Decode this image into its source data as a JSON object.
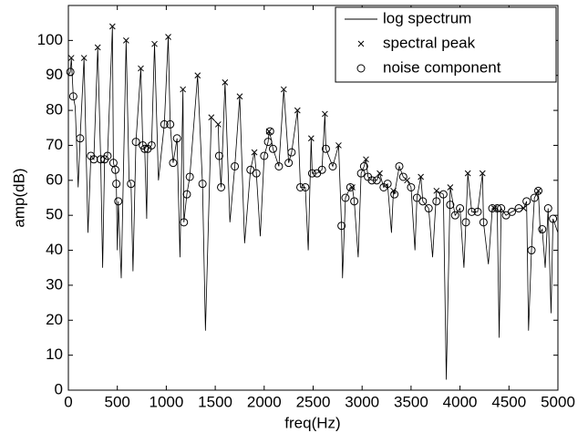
{
  "chart_data": {
    "type": "line",
    "xlabel": "freq(Hz)",
    "ylabel": "amp(dB)",
    "xlim": [
      0,
      5000
    ],
    "ylim": [
      0,
      110
    ],
    "xticks": [
      0,
      500,
      1000,
      1500,
      2000,
      2500,
      3000,
      3500,
      4000,
      4500,
      5000
    ],
    "yticks": [
      0,
      10,
      20,
      30,
      40,
      50,
      60,
      70,
      80,
      90,
      100
    ],
    "grid": false,
    "legend": "upper right",
    "series": [
      {
        "name": "log spectrum",
        "type": "line",
        "color": "#000000",
        "x": [
          0,
          20,
          30,
          50,
          70,
          100,
          120,
          160,
          200,
          230,
          260,
          300,
          330,
          350,
          370,
          400,
          450,
          460,
          480,
          490,
          500,
          510,
          540,
          590,
          620,
          640,
          660,
          690,
          740,
          760,
          780,
          800,
          810,
          850,
          880,
          920,
          980,
          1020,
          1040,
          1070,
          1110,
          1140,
          1170,
          1180,
          1210,
          1240,
          1320,
          1370,
          1400,
          1460,
          1530,
          1540,
          1560,
          1600,
          1650,
          1700,
          1750,
          1800,
          1860,
          1900,
          1920,
          1960,
          2000,
          2040,
          2050,
          2070,
          2090,
          2150,
          2200,
          2250,
          2280,
          2340,
          2370,
          2420,
          2450,
          2480,
          2490,
          2540,
          2590,
          2620,
          2630,
          2700,
          2760,
          2790,
          2800,
          2830,
          2880,
          2900,
          2920,
          2960,
          2990,
          3020,
          3040,
          3060,
          3100,
          3150,
          3180,
          3220,
          3260,
          3300,
          3320,
          3330,
          3380,
          3420,
          3460,
          3500,
          3540,
          3560,
          3600,
          3620,
          3680,
          3720,
          3760,
          3830,
          3860,
          3900,
          3950,
          4000,
          4040,
          4060,
          4080,
          4120,
          4180,
          4230,
          4240,
          4290,
          4330,
          4350,
          4380,
          4400,
          4420,
          4470,
          4530,
          4600,
          4650,
          4680,
          4700,
          4730,
          4760,
          4800,
          4820,
          4840,
          4870,
          4900,
          4930,
          4950,
          5000
        ],
        "values": [
          90,
          91,
          95,
          84,
          81,
          58,
          72,
          95,
          45,
          67,
          66,
          98,
          66,
          35,
          66,
          67,
          104,
          65,
          63,
          59,
          40,
          54,
          32,
          100,
          60,
          59,
          34,
          71,
          92,
          70,
          69,
          49,
          69,
          70,
          99,
          60,
          76,
          101,
          76,
          65,
          72,
          38,
          86,
          48,
          56,
          61,
          90,
          59,
          17,
          78,
          76,
          67,
          58,
          88,
          48,
          64,
          84,
          42,
          63,
          68,
          62,
          44,
          67,
          71,
          74,
          72,
          69,
          64,
          86,
          65,
          68,
          80,
          58,
          58,
          40,
          72,
          62,
          62,
          63,
          79,
          69,
          64,
          70,
          47,
          32,
          55,
          58,
          58,
          54,
          38,
          62,
          64,
          66,
          61,
          60,
          60,
          62,
          58,
          59,
          45,
          57,
          56,
          64,
          61,
          60,
          58,
          40,
          55,
          61,
          54,
          52,
          38,
          57,
          56,
          3,
          58,
          50,
          52,
          35,
          48,
          62,
          51,
          51,
          62,
          48,
          36,
          52,
          52,
          52,
          15,
          52,
          50,
          51,
          52,
          52,
          54,
          17,
          40,
          55,
          57,
          45,
          46,
          35,
          52,
          22,
          49,
          45
        ]
      },
      {
        "name": "spectral peak",
        "type": "scatter",
        "marker": "x",
        "color": "#000000",
        "x": [
          30,
          160,
          300,
          450,
          590,
          740,
          880,
          1020,
          1170,
          1320,
          1460,
          1530,
          1600,
          1750,
          1900,
          2050,
          2200,
          2340,
          2480,
          2620,
          2760,
          2900,
          3040,
          3180,
          3320,
          3460,
          3600,
          3760,
          3900,
          4080,
          4230,
          4350,
          4650,
          4800
        ],
        "values": [
          95,
          95,
          98,
          104,
          100,
          92,
          99,
          101,
          86,
          90,
          78,
          76,
          88,
          84,
          68,
          74,
          86,
          80,
          72,
          79,
          70,
          58,
          66,
          62,
          57,
          60,
          61,
          57,
          58,
          62,
          62,
          52,
          52,
          57
        ]
      },
      {
        "name": "noise component",
        "type": "scatter",
        "marker": "o",
        "color": "#000000",
        "x": [
          20,
          50,
          120,
          230,
          260,
          330,
          370,
          400,
          460,
          480,
          490,
          510,
          640,
          690,
          760,
          780,
          810,
          850,
          980,
          1040,
          1070,
          1110,
          1180,
          1210,
          1240,
          1370,
          1540,
          1560,
          1700,
          1860,
          1920,
          2000,
          2040,
          2060,
          2090,
          2150,
          2250,
          2280,
          2370,
          2420,
          2490,
          2540,
          2590,
          2630,
          2700,
          2790,
          2830,
          2880,
          2920,
          2990,
          3020,
          3060,
          3100,
          3150,
          3220,
          3260,
          3330,
          3380,
          3420,
          3500,
          3560,
          3620,
          3680,
          3760,
          3830,
          3900,
          3950,
          4000,
          4060,
          4120,
          4180,
          4240,
          4330,
          4380,
          4420,
          4470,
          4530,
          4600,
          4680,
          4730,
          4760,
          4800,
          4840,
          4900,
          4950
        ],
        "values": [
          91,
          84,
          72,
          67,
          66,
          66,
          66,
          67,
          65,
          63,
          59,
          54,
          59,
          71,
          70,
          69,
          69,
          70,
          76,
          76,
          65,
          72,
          48,
          56,
          61,
          59,
          67,
          58,
          64,
          63,
          62,
          67,
          71,
          74,
          69,
          64,
          65,
          68,
          58,
          58,
          62,
          62,
          63,
          69,
          64,
          47,
          55,
          58,
          54,
          62,
          64,
          61,
          60,
          60,
          58,
          59,
          56,
          64,
          61,
          58,
          55,
          54,
          52,
          54,
          56,
          53,
          50,
          52,
          48,
          51,
          51,
          48,
          52,
          52,
          52,
          50,
          51,
          52,
          54,
          40,
          55,
          57,
          46,
          52,
          49
        ]
      }
    ]
  }
}
